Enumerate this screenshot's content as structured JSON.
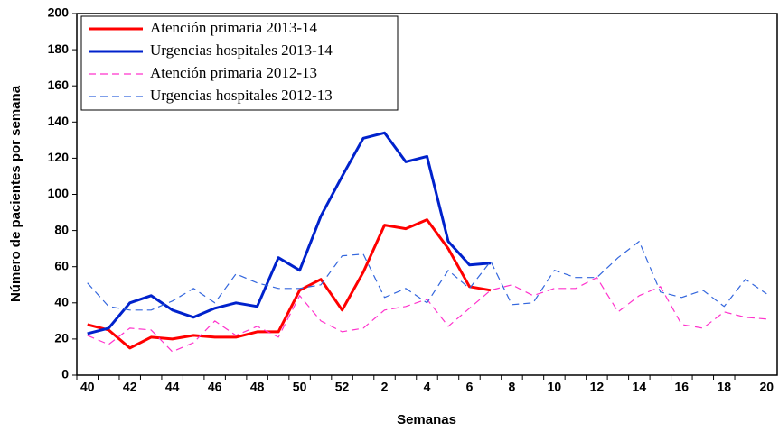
{
  "chart_data": {
    "type": "line",
    "x_label": "Semanas",
    "y_label": "Número de pacientes por semana",
    "categories": [
      40,
      null,
      42,
      null,
      44,
      null,
      46,
      null,
      48,
      null,
      50,
      null,
      52,
      null,
      2,
      null,
      4,
      null,
      6,
      null,
      8,
      null,
      10,
      null,
      12,
      null,
      14,
      null,
      16,
      null,
      18,
      null,
      20
    ],
    "ylim": [
      0,
      200
    ],
    "yticks": [
      0,
      20,
      40,
      60,
      80,
      100,
      120,
      140,
      160,
      180,
      200
    ],
    "grid": false,
    "legend": "upper left",
    "series": [
      {
        "name": "Atención primaria 2013-14",
        "color": "#ff0000",
        "dashed": false,
        "values": [
          28,
          25,
          15,
          21,
          20,
          22,
          21,
          21,
          24,
          24,
          47,
          53,
          36,
          57,
          83,
          81,
          86,
          70,
          49,
          47,
          null,
          null,
          null,
          null,
          null,
          null,
          null,
          null,
          null,
          null,
          null,
          null,
          null
        ]
      },
      {
        "name": "Urgencias hospitales 2013-14",
        "color": "#0022cc",
        "dashed": false,
        "values": [
          23,
          26,
          40,
          44,
          36,
          32,
          37,
          40,
          38,
          65,
          58,
          88,
          110,
          131,
          134,
          118,
          121,
          74,
          61,
          62,
          null,
          null,
          null,
          null,
          null,
          null,
          null,
          null,
          null,
          null,
          null,
          null,
          null
        ]
      },
      {
        "name": "Atención primaria 2012-13",
        "color": "#ff33cc",
        "dashed": true,
        "values": [
          22,
          17,
          26,
          25,
          13,
          18,
          30,
          22,
          27,
          21,
          44,
          30,
          24,
          26,
          36,
          38,
          42,
          27,
          37,
          47,
          50,
          44,
          48,
          48,
          54,
          35,
          44,
          49,
          28,
          26,
          35,
          32,
          31
        ]
      },
      {
        "name": "Urgencias hospitales 2012-13",
        "color": "#3366dd",
        "dashed": true,
        "values": [
          51,
          38,
          36,
          36,
          41,
          48,
          40,
          56,
          51,
          48,
          48,
          50,
          66,
          67,
          43,
          48,
          40,
          58,
          48,
          63,
          39,
          40,
          58,
          54,
          54,
          65,
          74,
          46,
          43,
          47,
          38,
          53,
          45
        ]
      }
    ]
  }
}
